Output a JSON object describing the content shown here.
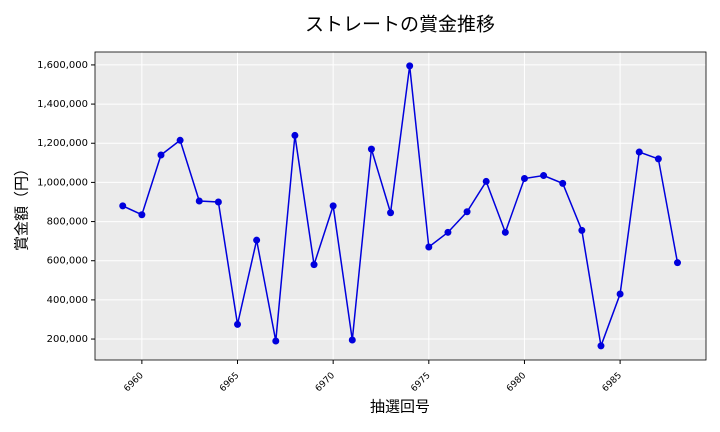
{
  "chart_data": {
    "type": "line",
    "title": "ストレートの賞金推移",
    "x_label": "抽選回号",
    "y_label": "賞金額（円）",
    "x": [
      6959,
      6960,
      6961,
      6962,
      6963,
      6964,
      6965,
      6966,
      6967,
      6968,
      6969,
      6970,
      6971,
      6972,
      6973,
      6974,
      6975,
      6976,
      6977,
      6978,
      6979,
      6980,
      6981,
      6982,
      6983,
      6984,
      6985,
      6986,
      6987,
      6988
    ],
    "series": [
      {
        "color": "#0000dd",
        "values": [
          880000,
          835000,
          1140000,
          1215000,
          905000,
          900000,
          275000,
          705000,
          190000,
          1240000,
          580000,
          880000,
          195000,
          1170000,
          845000,
          1595000,
          670000,
          745000,
          850000,
          1005000,
          745000,
          1020000,
          1035000,
          995000,
          755000,
          165000,
          430000,
          1155000,
          1120000,
          590000
        ]
      }
    ],
    "xlim": [
      6957.55,
      6989.49
    ],
    "ylim": [
      93000,
      1666000
    ],
    "xticks": [
      6960,
      6965,
      6970,
      6975,
      6980,
      6985
    ],
    "yticks": [
      {
        "value": 200000,
        "label": "200,000"
      },
      {
        "value": 400000,
        "label": "400,000"
      },
      {
        "value": 600000,
        "label": "600,000"
      },
      {
        "value": 800000,
        "label": "800,000"
      },
      {
        "value": 1000000,
        "label": "1,000,000"
      },
      {
        "value": 1200000,
        "label": "1,200,000"
      },
      {
        "value": 1400000,
        "label": "1,400,000"
      },
      {
        "value": 1600000,
        "label": "1,600,000"
      }
    ],
    "grid": true
  }
}
